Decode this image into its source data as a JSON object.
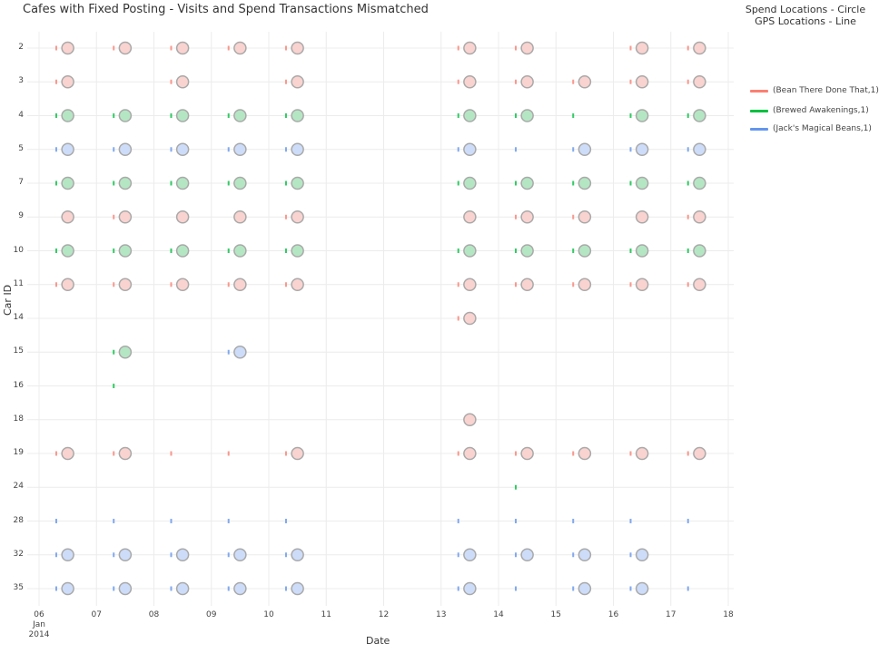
{
  "chart_data": {
    "type": "scatter",
    "title": "Cafes with Fixed Posting - Visits and Spend Transactions Mismatched",
    "xlabel": "Date",
    "ylabel": "Car ID",
    "legend_title": [
      "Spend Locations - Circle",
      "GPS Locations - Line"
    ],
    "legend_position": "right",
    "grid": true,
    "x_unit": "day of January 2014",
    "xlim": [
      "2014-01-06",
      "2014-01-18"
    ],
    "x_ticks": [
      {
        "label": "06",
        "sub": [
          "Jan",
          "2014"
        ]
      },
      {
        "label": "07"
      },
      {
        "label": "08"
      },
      {
        "label": "09"
      },
      {
        "label": "10"
      },
      {
        "label": "11"
      },
      {
        "label": "12"
      },
      {
        "label": "13"
      },
      {
        "label": "14"
      },
      {
        "label": "15"
      },
      {
        "label": "16"
      },
      {
        "label": "17"
      },
      {
        "label": "18"
      }
    ],
    "categories": [
      "2",
      "3",
      "4",
      "5",
      "7",
      "9",
      "10",
      "11",
      "14",
      "15",
      "16",
      "18",
      "19",
      "24",
      "28",
      "32",
      "35"
    ],
    "spend_time": "12:00",
    "gps_time": "07:12",
    "series": [
      {
        "name": "(Bean There Done That,1)",
        "color": "#fa8072",
        "fill": "#f9d3d0"
      },
      {
        "name": "(Brewed Awakenings,1)",
        "color": "#00c040",
        "fill": "#b5e6c3"
      },
      {
        "name": "(Jack's Magical Beans,1)",
        "color": "#6495ed",
        "fill": "#cddcf8"
      }
    ],
    "rows": [
      {
        "car": "2",
        "series": 0,
        "spend_days": [
          6,
          7,
          8,
          9,
          10,
          13,
          14,
          16,
          17
        ],
        "gps_days": [
          6,
          7,
          8,
          9,
          10,
          13,
          14,
          16,
          17
        ]
      },
      {
        "car": "3",
        "series": 0,
        "spend_days": [
          6,
          8,
          10,
          13,
          14,
          15,
          16,
          17
        ],
        "gps_days": [
          6,
          8,
          10,
          13,
          14,
          15,
          16,
          17
        ]
      },
      {
        "car": "4",
        "series": 1,
        "spend_days": [
          6,
          7,
          8,
          9,
          10,
          13,
          14,
          16,
          17
        ],
        "gps_days": [
          6,
          7,
          8,
          9,
          10,
          13,
          14,
          15,
          16,
          17
        ]
      },
      {
        "car": "5",
        "series": 2,
        "spend_days": [
          6,
          7,
          8,
          9,
          10,
          13,
          15,
          16,
          17
        ],
        "gps_days": [
          6,
          7,
          8,
          9,
          10,
          13,
          14,
          15,
          16,
          17
        ]
      },
      {
        "car": "7",
        "series": 1,
        "spend_days": [
          6,
          7,
          8,
          9,
          10,
          13,
          14,
          15,
          16,
          17
        ],
        "gps_days": [
          6,
          7,
          8,
          9,
          10,
          13,
          14,
          15,
          16,
          17
        ]
      },
      {
        "car": "9",
        "series": 0,
        "spend_days": [
          6,
          7,
          8,
          9,
          10,
          13,
          14,
          15,
          16,
          17
        ],
        "gps_days": [
          7,
          10,
          14,
          15,
          17
        ]
      },
      {
        "car": "10",
        "series": 1,
        "spend_days": [
          6,
          7,
          8,
          9,
          10,
          13,
          14,
          15,
          16,
          17
        ],
        "gps_days": [
          6,
          7,
          8,
          9,
          10,
          13,
          14,
          15,
          16,
          17
        ]
      },
      {
        "car": "11",
        "series": 0,
        "spend_days": [
          6,
          7,
          8,
          9,
          10,
          13,
          14,
          15,
          16,
          17
        ],
        "gps_days": [
          6,
          7,
          8,
          9,
          10,
          13,
          14,
          15,
          16,
          17
        ]
      },
      {
        "car": "14",
        "series": 0,
        "spend_days": [
          13
        ],
        "gps_days": [
          13
        ]
      },
      {
        "car": "15",
        "series": 1,
        "spend_days": [
          7
        ],
        "gps_days": [
          7
        ]
      },
      {
        "car": "15",
        "series": 2,
        "spend_days": [
          9
        ],
        "gps_days": [
          9
        ]
      },
      {
        "car": "16",
        "series": 1,
        "spend_days": [],
        "gps_days": [
          7
        ]
      },
      {
        "car": "18",
        "series": 0,
        "spend_days": [
          13
        ],
        "gps_days": []
      },
      {
        "car": "19",
        "series": 0,
        "spend_days": [
          6,
          7,
          10,
          13,
          14,
          15,
          16,
          17
        ],
        "gps_days": [
          6,
          7,
          8,
          9,
          10,
          13,
          14,
          15,
          16,
          17
        ]
      },
      {
        "car": "24",
        "series": 1,
        "spend_days": [],
        "gps_days": [
          14
        ]
      },
      {
        "car": "28",
        "series": 2,
        "spend_days": [],
        "gps_days": [
          6,
          7,
          8,
          9,
          10,
          13,
          14,
          15,
          16,
          17
        ]
      },
      {
        "car": "32",
        "series": 2,
        "spend_days": [
          6,
          7,
          8,
          9,
          10,
          13,
          14,
          15,
          16
        ],
        "gps_days": [
          6,
          7,
          8,
          9,
          10,
          13,
          14,
          15,
          16
        ]
      },
      {
        "car": "35",
        "series": 2,
        "spend_days": [
          6,
          7,
          8,
          9,
          10,
          13,
          15,
          16
        ],
        "gps_days": [
          6,
          7,
          8,
          9,
          10,
          13,
          14,
          15,
          16,
          17
        ]
      }
    ]
  }
}
